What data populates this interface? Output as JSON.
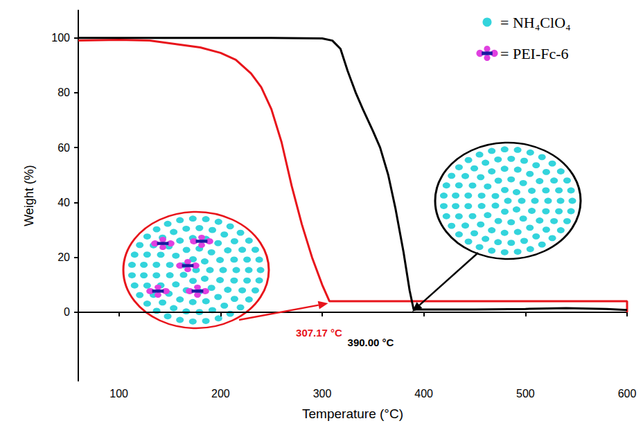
{
  "chart_data": {
    "type": "line",
    "x_label": "Temperature (°C)",
    "y_label": "Weight (%)",
    "xlim": [
      60,
      600
    ],
    "xticks": [
      100,
      200,
      300,
      400,
      500,
      600
    ],
    "ylim": [
      -25,
      110
    ],
    "yticks": [
      0,
      20,
      40,
      60,
      80,
      100
    ],
    "grid": false,
    "legend": "upper right",
    "key": [
      {
        "label": "= NH₄ClO₄",
        "color": "#33d4dc",
        "marker": "circle"
      },
      {
        "label": "= PEI-Fc-6",
        "color": "#e040e0",
        "marker": "cross"
      }
    ],
    "series": [
      {
        "color": "#e8141b",
        "line_style": "solid",
        "x": [
          60,
          100,
          130,
          160,
          180,
          200,
          215,
          230,
          240,
          250,
          260,
          270,
          280,
          290,
          300,
          307.17,
          350,
          400,
          500,
          600,
          600
        ],
        "values": [
          99,
          99.3,
          99,
          97.5,
          96.5,
          94.5,
          92,
          87,
          82,
          74,
          62,
          46,
          32,
          20,
          10,
          4,
          4,
          4,
          4,
          4,
          0
        ]
      },
      {
        "color": "#000000",
        "line_style": "solid",
        "x": [
          60,
          250,
          300,
          310,
          318,
          325,
          333,
          340,
          350,
          357,
          365,
          372,
          380,
          386,
          390,
          450,
          500,
          540,
          580,
          600
        ],
        "values": [
          100,
          100,
          99.8,
          99,
          96,
          88,
          80,
          74,
          66,
          60,
          50,
          38,
          22,
          8,
          1,
          1,
          1.2,
          1.5,
          1.2,
          0.8
        ]
      }
    ],
    "annotations": [
      {
        "text": "307.17 °C",
        "x": 307.17,
        "y": 4,
        "color": "#e8141b"
      },
      {
        "text": "390.00 °C",
        "x": 390,
        "y": 1,
        "color": "#000000"
      }
    ]
  }
}
